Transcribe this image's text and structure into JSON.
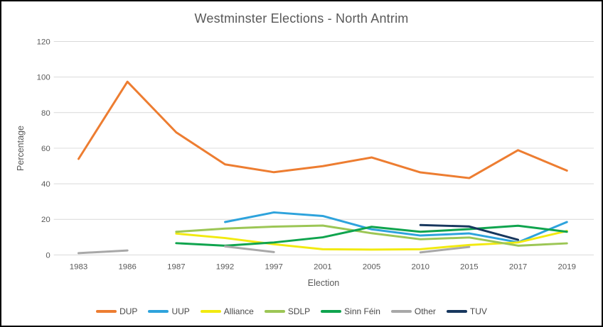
{
  "chart_data": {
    "type": "line",
    "title": "Westminster Elections - North Antrim",
    "xlabel": "Election",
    "ylabel": "Percentage",
    "ylim": [
      0,
      120
    ],
    "yticks": [
      0,
      20,
      40,
      60,
      80,
      100,
      120
    ],
    "grid": "horizontal",
    "gridline_color": "#d9d9d9",
    "legend_position": "bottom",
    "categories": [
      "1983",
      "1986",
      "1987",
      "1992",
      "1997",
      "2001",
      "2005",
      "2010",
      "2015",
      "2017",
      "2019"
    ],
    "series": [
      {
        "name": "DUP",
        "color": "#ED7D31",
        "values": [
          54.0,
          97.4,
          68.9,
          50.9,
          46.5,
          49.9,
          54.8,
          46.4,
          43.2,
          58.9,
          47.4
        ]
      },
      {
        "name": "UUP",
        "color": "#2EA3DC",
        "values": [
          null,
          null,
          null,
          18.5,
          23.9,
          21.9,
          14.4,
          10.9,
          12.1,
          7.1,
          18.5
        ]
      },
      {
        "name": "Alliance",
        "color": "#F2EA10",
        "values": [
          null,
          null,
          12.0,
          9.5,
          6.0,
          3.2,
          3.0,
          3.2,
          5.6,
          7.0,
          13.5
        ]
      },
      {
        "name": "SDLP",
        "color": "#9CC655",
        "values": [
          null,
          null,
          13.0,
          14.8,
          15.9,
          16.5,
          12.2,
          8.8,
          9.8,
          5.2,
          6.5
        ]
      },
      {
        "name": "Sinn Féin",
        "color": "#0FA44E",
        "values": [
          null,
          null,
          6.6,
          5.2,
          7.0,
          9.9,
          15.8,
          13.0,
          14.5,
          16.4,
          13.0
        ]
      },
      {
        "name": "Other",
        "color": "#A8A8A8",
        "values": [
          1.0,
          2.5,
          null,
          4.8,
          1.6,
          null,
          null,
          1.4,
          4.5,
          null,
          null
        ]
      },
      {
        "name": "TUV",
        "color": "#17375E",
        "values": [
          null,
          null,
          null,
          null,
          null,
          null,
          null,
          16.8,
          16.0,
          8.5,
          null
        ]
      }
    ]
  }
}
